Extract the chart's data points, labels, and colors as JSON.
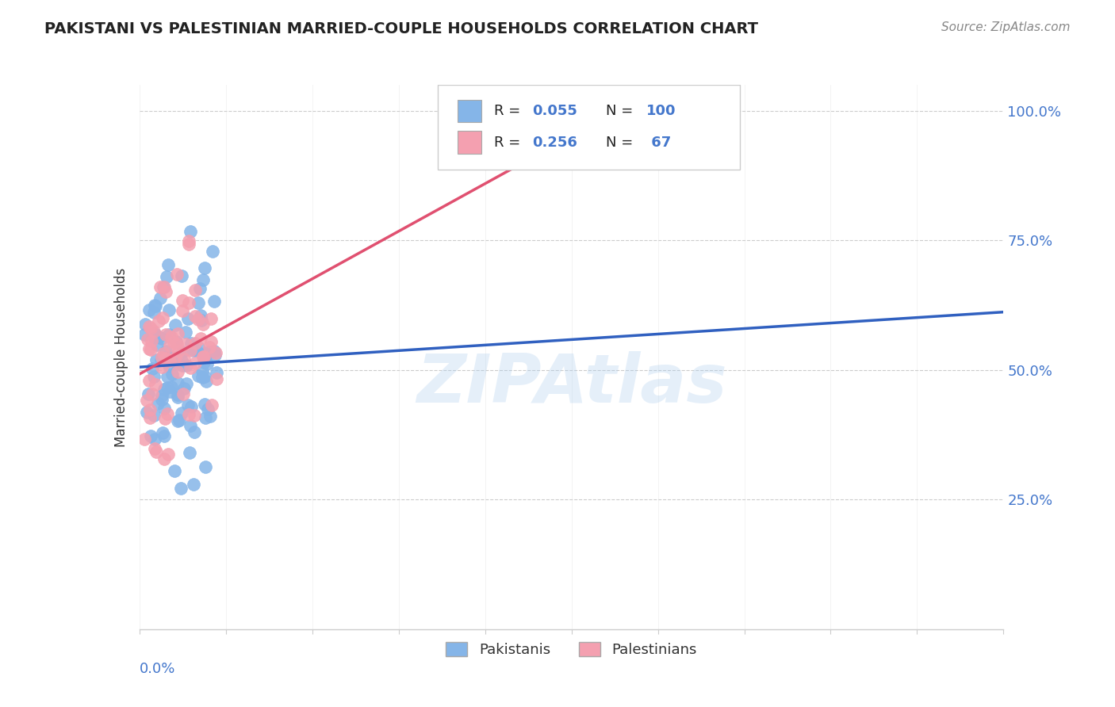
{
  "title": "PAKISTANI VS PALESTINIAN MARRIED-COUPLE HOUSEHOLDS CORRELATION CHART",
  "source": "Source: ZipAtlas.com",
  "ylabel": "Married-couple Households",
  "watermark": "ZIPAtlas",
  "pakistanis_color": "#85b5e8",
  "palestinians_color": "#f4a0b0",
  "trendline1_color": "#3060c0",
  "trendline2_color": "#e05070",
  "background_color": "#ffffff",
  "r1": "0.055",
  "n1": "100",
  "r2": "0.256",
  "n2": " 67",
  "xlim": [
    0.0,
    0.2
  ],
  "ylim": [
    0.0,
    1.05
  ]
}
